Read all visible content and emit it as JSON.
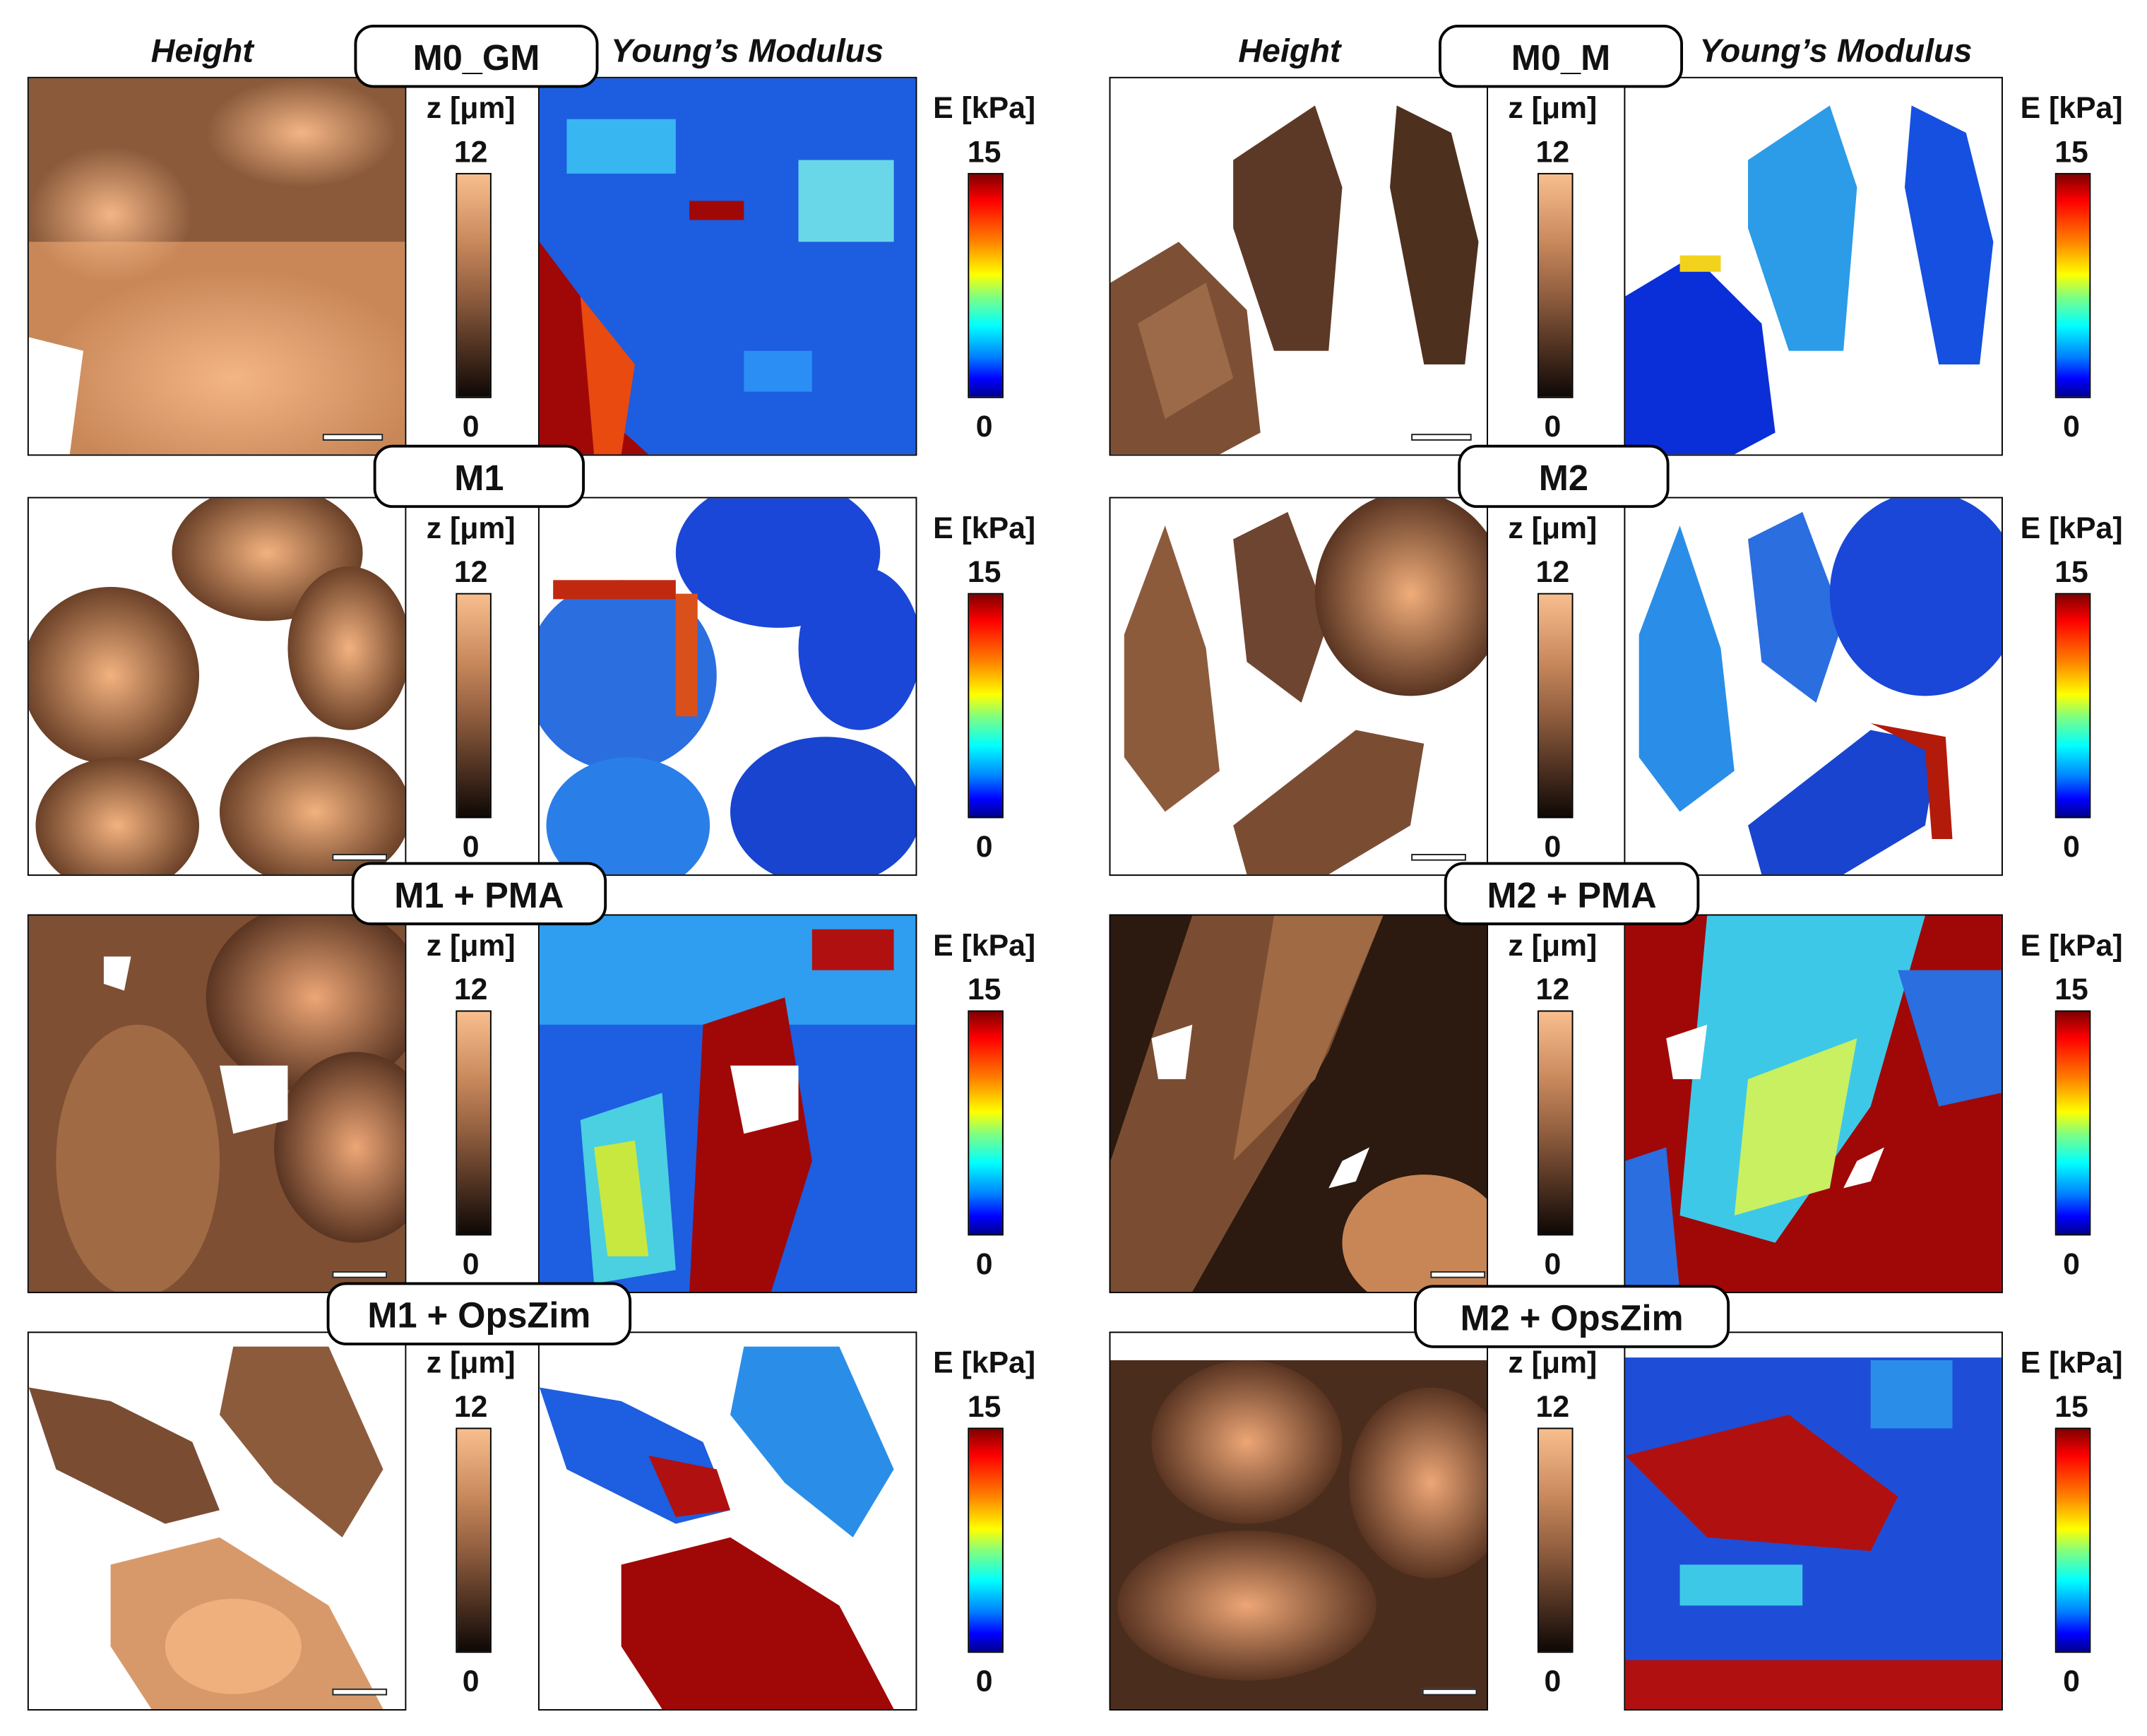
{
  "headers": {
    "height": "Height",
    "modulus": "Young’s  Modulus"
  },
  "colorbars": {
    "z_label": "z [μm]",
    "z_max": "12",
    "z_min": "0",
    "e_label": "E [kPa]",
    "e_max": "15",
    "e_min": "0"
  },
  "panels": [
    {
      "label": "M0_GM"
    },
    {
      "label": "M0_M"
    },
    {
      "label": "M1"
    },
    {
      "label": "M2"
    },
    {
      "label": "M1 + PMA"
    },
    {
      "label": "M2 + PMA"
    },
    {
      "label": "M1 + OpsZim"
    },
    {
      "label": "M2 + OpsZim"
    }
  ],
  "colors": {
    "height_high": "#f8be8e",
    "height_low": "#0e0805",
    "modulus_high": "#800000",
    "modulus_low": "#00008f"
  }
}
